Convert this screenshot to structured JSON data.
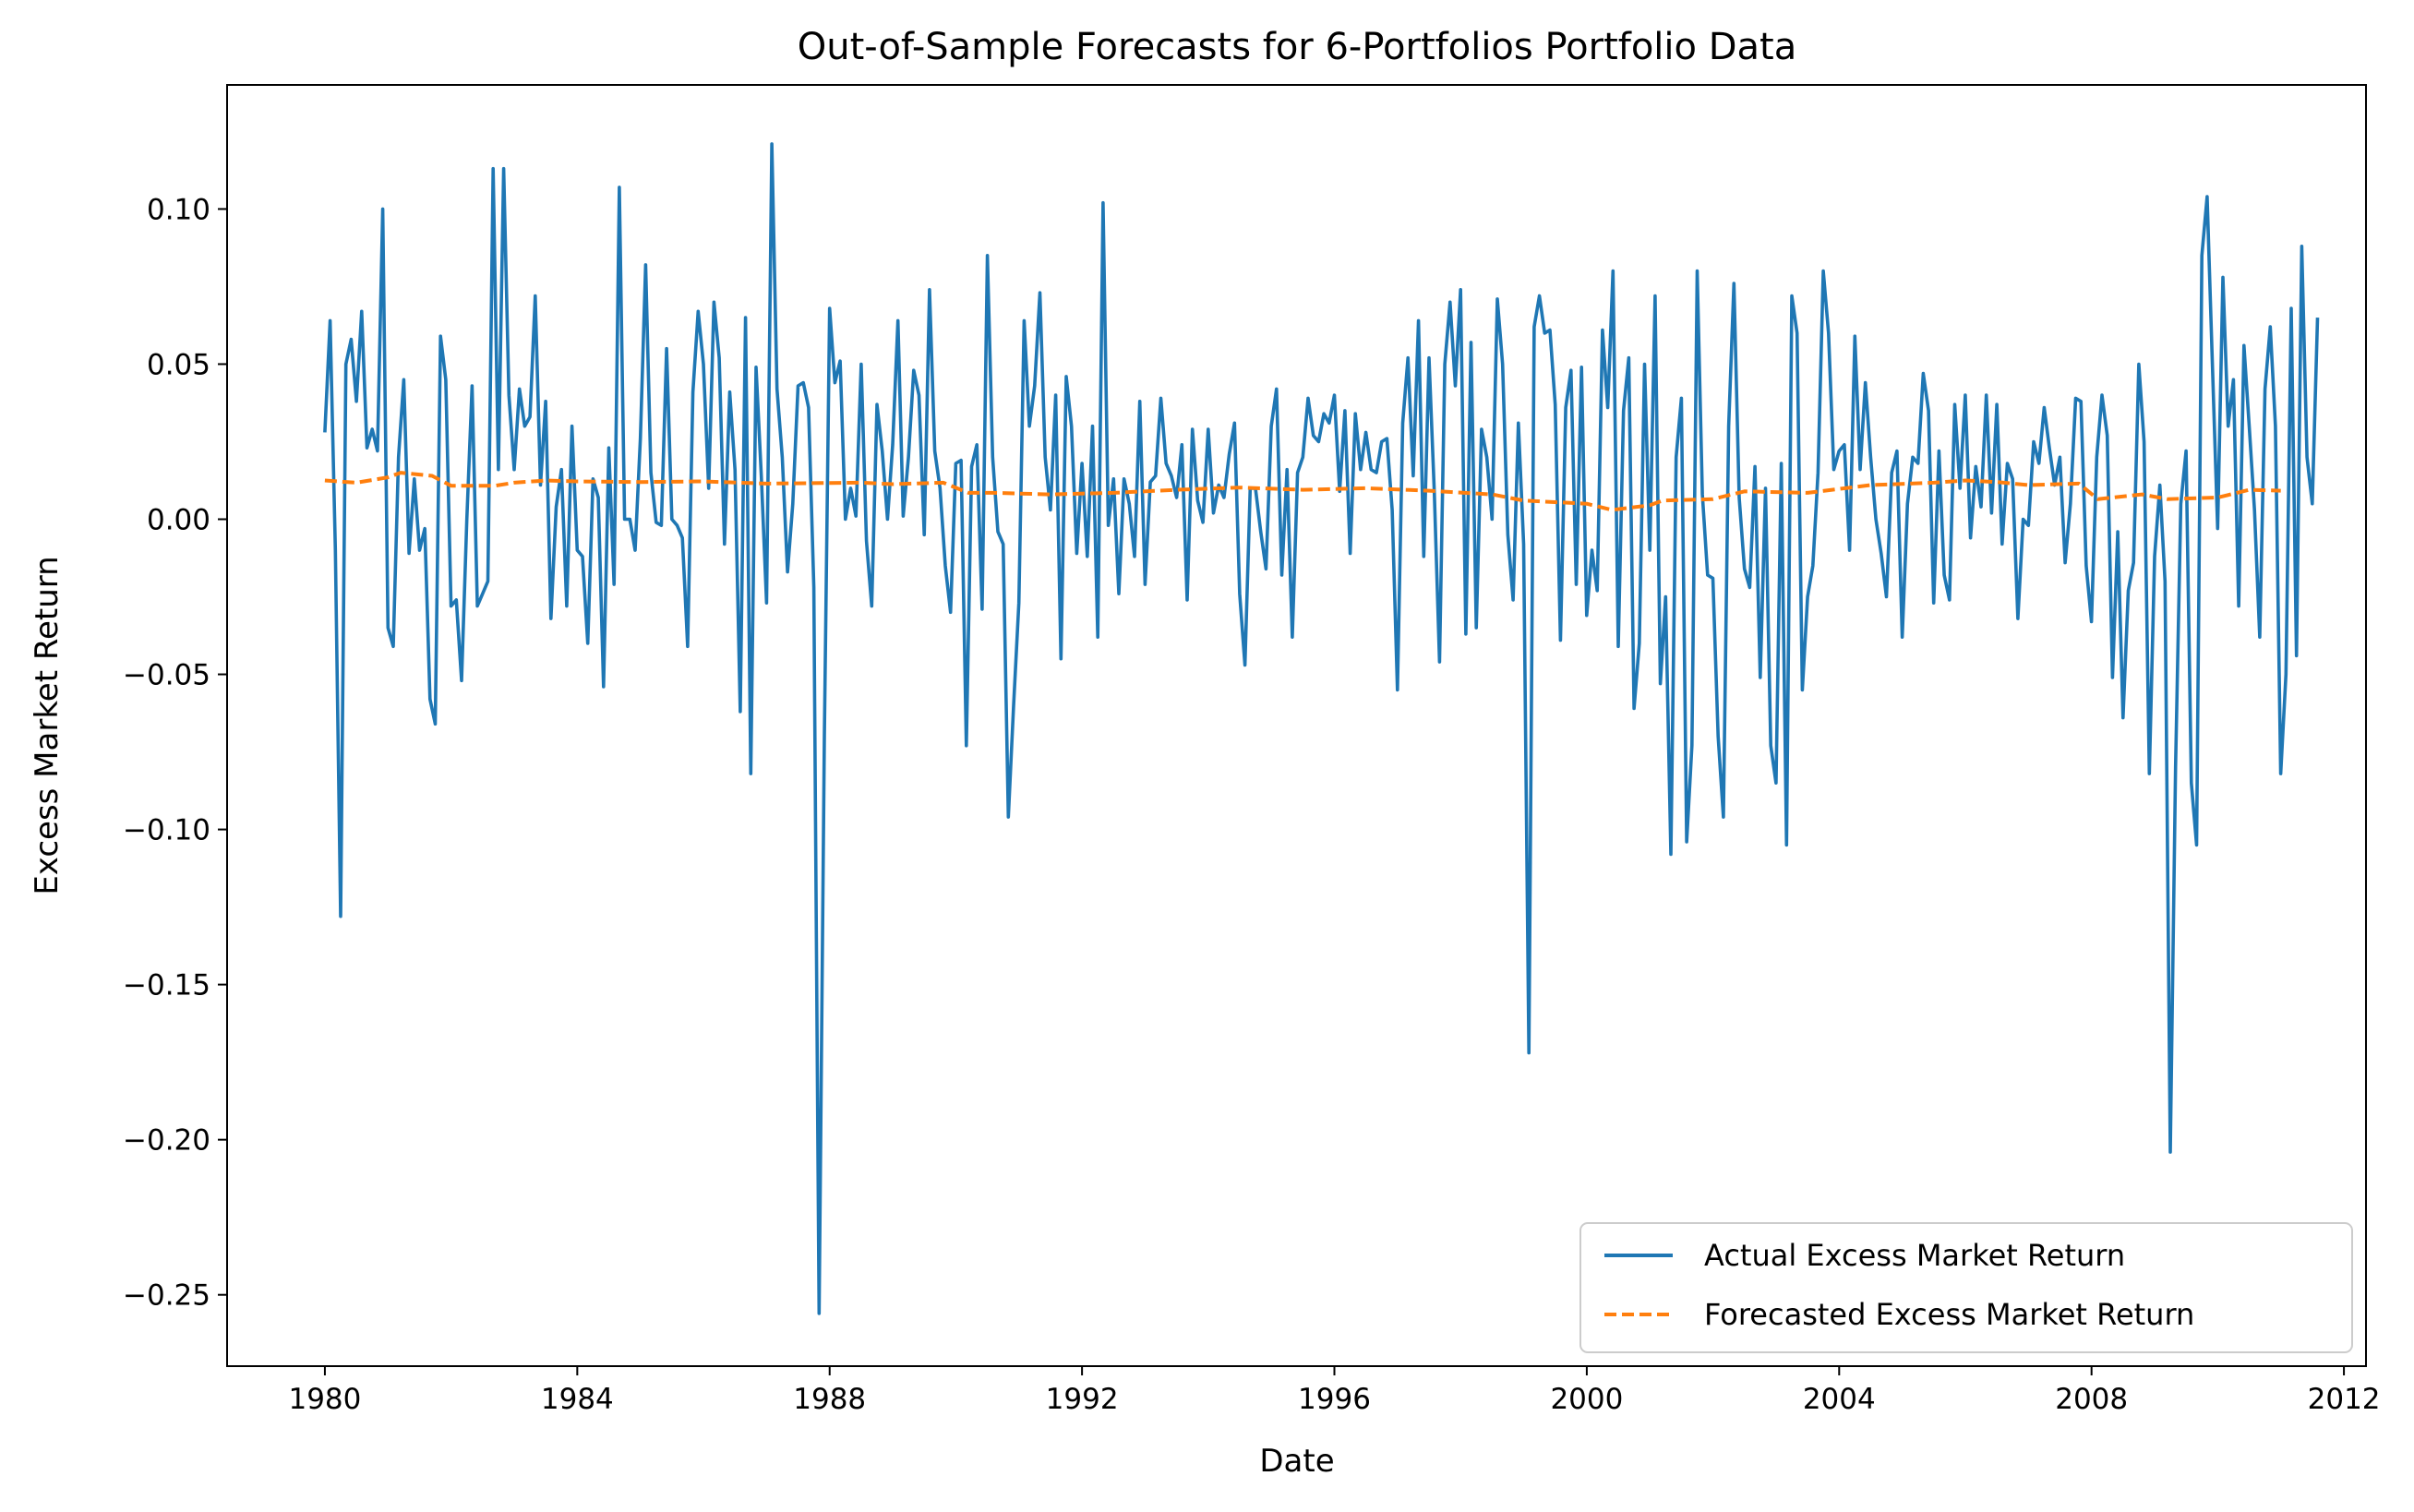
{
  "chart_data": {
    "type": "line",
    "title": "Out-of-Sample Forecasts for 6-Portfolios Portfolio Data",
    "xlabel": "Date",
    "ylabel": "Excess Market Return",
    "xlim": [
      1978.45,
      2012.35
    ],
    "ylim": [
      -0.273,
      0.14
    ],
    "x_ticks": [
      1980,
      1984,
      1988,
      1992,
      1996,
      2000,
      2004,
      2008,
      2012
    ],
    "x_tick_labels": [
      "1980",
      "1984",
      "1988",
      "1992",
      "1996",
      "2000",
      "2004",
      "2008",
      "2012"
    ],
    "y_ticks": [
      -0.25,
      -0.2,
      -0.15,
      -0.1,
      -0.05,
      0.0,
      0.05,
      0.1
    ],
    "y_tick_labels": [
      "−0.25",
      "−0.20",
      "−0.15",
      "−0.10",
      "−0.05",
      "0.00",
      "0.05",
      "0.10"
    ],
    "grid": false,
    "legend_position": "lower-right",
    "colors": {
      "actual": "#1f77b4",
      "forecast": "#ff7f0e"
    },
    "series": [
      {
        "name": "Actual Excess Market Return",
        "style": "solid",
        "x_start": 1980.0,
        "x_step": 0.08333,
        "values": [
          0.028,
          0.064,
          -0.01,
          -0.128,
          0.05,
          0.058,
          0.038,
          0.067,
          0.023,
          0.029,
          0.022,
          0.1,
          -0.035,
          -0.041,
          0.02,
          0.045,
          -0.011,
          0.013,
          -0.01,
          -0.003,
          -0.058,
          -0.066,
          0.059,
          0.045,
          -0.028,
          -0.026,
          -0.052,
          0.0,
          0.043,
          -0.028,
          -0.024,
          -0.02,
          0.113,
          0.016,
          0.113,
          0.04,
          0.016,
          0.042,
          0.03,
          0.033,
          0.072,
          0.011,
          0.038,
          -0.032,
          0.004,
          0.016,
          -0.028,
          0.03,
          -0.01,
          -0.012,
          -0.04,
          0.013,
          0.007,
          -0.054,
          0.023,
          -0.021,
          0.107,
          0.0,
          0.0,
          -0.01,
          0.026,
          0.082,
          0.015,
          -0.001,
          -0.002,
          0.055,
          0.0,
          -0.002,
          -0.006,
          -0.041,
          0.041,
          0.067,
          0.05,
          0.01,
          0.07,
          0.052,
          -0.008,
          0.041,
          0.016,
          -0.062,
          0.065,
          -0.082,
          0.049,
          0.014,
          -0.027,
          0.121,
          0.042,
          0.02,
          -0.017,
          0.005,
          0.043,
          0.044,
          0.036,
          -0.022,
          -0.256,
          -0.07,
          0.068,
          0.044,
          0.051,
          0.0,
          0.01,
          0.001,
          0.05,
          -0.007,
          -0.028,
          0.037,
          0.022,
          0.0,
          0.024,
          0.064,
          0.001,
          0.02,
          0.048,
          0.04,
          -0.005,
          0.074,
          0.022,
          0.01,
          -0.015,
          -0.03,
          0.018,
          0.019,
          -0.073,
          0.017,
          0.024,
          -0.029,
          0.085,
          0.02,
          -0.004,
          -0.008,
          -0.096,
          -0.06,
          -0.027,
          0.064,
          0.03,
          0.043,
          0.073,
          0.02,
          0.003,
          0.04,
          -0.045,
          0.046,
          0.03,
          -0.011,
          0.018,
          -0.012,
          0.03,
          -0.038,
          0.102,
          -0.002,
          0.013,
          -0.024,
          0.013,
          0.005,
          -0.012,
          0.038,
          -0.021,
          0.012,
          0.014,
          0.039,
          0.018,
          0.014,
          0.007,
          0.024,
          -0.026,
          0.029,
          0.006,
          -0.001,
          0.029,
          0.002,
          0.011,
          0.007,
          0.021,
          0.031,
          -0.024,
          -0.047,
          0.01,
          0.01,
          -0.004,
          -0.016,
          0.03,
          0.042,
          -0.018,
          0.016,
          -0.038,
          0.015,
          0.02,
          0.039,
          0.027,
          0.025,
          0.034,
          0.031,
          0.04,
          0.009,
          0.035,
          -0.011,
          0.034,
          0.016,
          0.028,
          0.016,
          0.015,
          0.025,
          0.026,
          0.003,
          -0.055,
          0.031,
          0.052,
          0.014,
          0.064,
          -0.012,
          0.052,
          0.009,
          -0.046,
          0.05,
          0.07,
          0.043,
          0.074,
          -0.037,
          0.057,
          -0.035,
          0.029,
          0.02,
          0.0,
          0.071,
          0.05,
          -0.005,
          -0.026,
          0.031,
          -0.008,
          -0.172,
          0.062,
          0.072,
          0.06,
          0.061,
          0.037,
          -0.039,
          0.036,
          0.048,
          -0.021,
          0.049,
          -0.031,
          -0.01,
          -0.023,
          0.061,
          0.036,
          0.08,
          -0.041,
          0.035,
          0.052,
          -0.061,
          -0.04,
          0.05,
          -0.01,
          0.072,
          -0.053,
          -0.025,
          -0.108,
          0.02,
          0.039,
          -0.104,
          -0.073,
          0.08,
          0.008,
          -0.018,
          -0.019,
          -0.07,
          -0.096,
          0.03,
          0.076,
          0.007,
          -0.016,
          -0.022,
          0.017,
          -0.051,
          0.01,
          -0.073,
          -0.085,
          0.018,
          -0.105,
          0.072,
          0.06,
          -0.055,
          -0.025,
          -0.015,
          0.015,
          0.08,
          0.06,
          0.016,
          0.022,
          0.024,
          -0.01,
          0.059,
          0.016,
          0.044,
          0.02,
          0.0,
          -0.011,
          -0.025,
          0.015,
          0.022,
          -0.038,
          0.005,
          0.02,
          0.018,
          0.047,
          0.035,
          -0.027,
          0.022,
          -0.018,
          -0.026,
          0.037,
          0.01,
          0.04,
          -0.006,
          0.017,
          0.004,
          0.04,
          0.002,
          0.037,
          -0.008,
          0.018,
          0.013,
          -0.032,
          0.0,
          -0.002,
          0.025,
          0.018,
          0.036,
          0.023,
          0.011,
          0.02,
          -0.014,
          0.005,
          0.039,
          0.038,
          -0.015,
          -0.033,
          0.02,
          0.04,
          0.027,
          -0.051,
          -0.004,
          -0.064,
          -0.023,
          -0.014,
          0.05,
          0.025,
          -0.082,
          -0.012,
          0.011,
          -0.02,
          -0.204,
          -0.08,
          0.005,
          0.022,
          -0.085,
          -0.105,
          0.085,
          0.104,
          0.05,
          -0.003,
          0.078,
          0.03,
          0.045,
          -0.028,
          0.056,
          0.03,
          0.003,
          -0.038,
          0.042,
          0.062,
          0.03,
          -0.082,
          -0.05,
          0.068,
          -0.044,
          0.088,
          0.02,
          0.005,
          0.065
        ]
      },
      {
        "name": "Forecasted Excess Market Return",
        "style": "dashed",
        "points": [
          [
            1980.0,
            0.0125
          ],
          [
            1980.5,
            0.0118
          ],
          [
            1981.0,
            0.0135
          ],
          [
            1981.2,
            0.015
          ],
          [
            1981.7,
            0.014
          ],
          [
            1982.0,
            0.0108
          ],
          [
            1982.7,
            0.0108
          ],
          [
            1983.0,
            0.0118
          ],
          [
            1983.5,
            0.0125
          ],
          [
            1984.0,
            0.0122
          ],
          [
            1985.0,
            0.012
          ],
          [
            1986.0,
            0.0122
          ],
          [
            1987.0,
            0.0115
          ],
          [
            1988.0,
            0.0117
          ],
          [
            1988.5,
            0.0118
          ],
          [
            1989.0,
            0.0113
          ],
          [
            1989.8,
            0.0118
          ],
          [
            1990.2,
            0.0085
          ],
          [
            1990.6,
            0.0085
          ],
          [
            1991.5,
            0.008
          ],
          [
            1992.5,
            0.0085
          ],
          [
            1993.5,
            0.0095
          ],
          [
            1994.5,
            0.0102
          ],
          [
            1995.5,
            0.0095
          ],
          [
            1996.5,
            0.01
          ],
          [
            1997.5,
            0.0092
          ],
          [
            1998.5,
            0.008
          ],
          [
            1999.0,
            0.006
          ],
          [
            2000.0,
            0.005
          ],
          [
            2000.4,
            0.003
          ],
          [
            2001.0,
            0.0045
          ],
          [
            2001.2,
            0.006
          ],
          [
            2002.0,
            0.0065
          ],
          [
            2002.5,
            0.009
          ],
          [
            2003.5,
            0.0085
          ],
          [
            2004.5,
            0.011
          ],
          [
            2005.5,
            0.0118
          ],
          [
            2006.0,
            0.0125
          ],
          [
            2006.5,
            0.012
          ],
          [
            2007.0,
            0.011
          ],
          [
            2007.8,
            0.0115
          ],
          [
            2008.1,
            0.0065
          ],
          [
            2008.8,
            0.008
          ],
          [
            2009.2,
            0.0065
          ],
          [
            2010.0,
            0.007
          ],
          [
            2010.5,
            0.0095
          ],
          [
            2011.0,
            0.0092
          ]
        ]
      }
    ]
  }
}
